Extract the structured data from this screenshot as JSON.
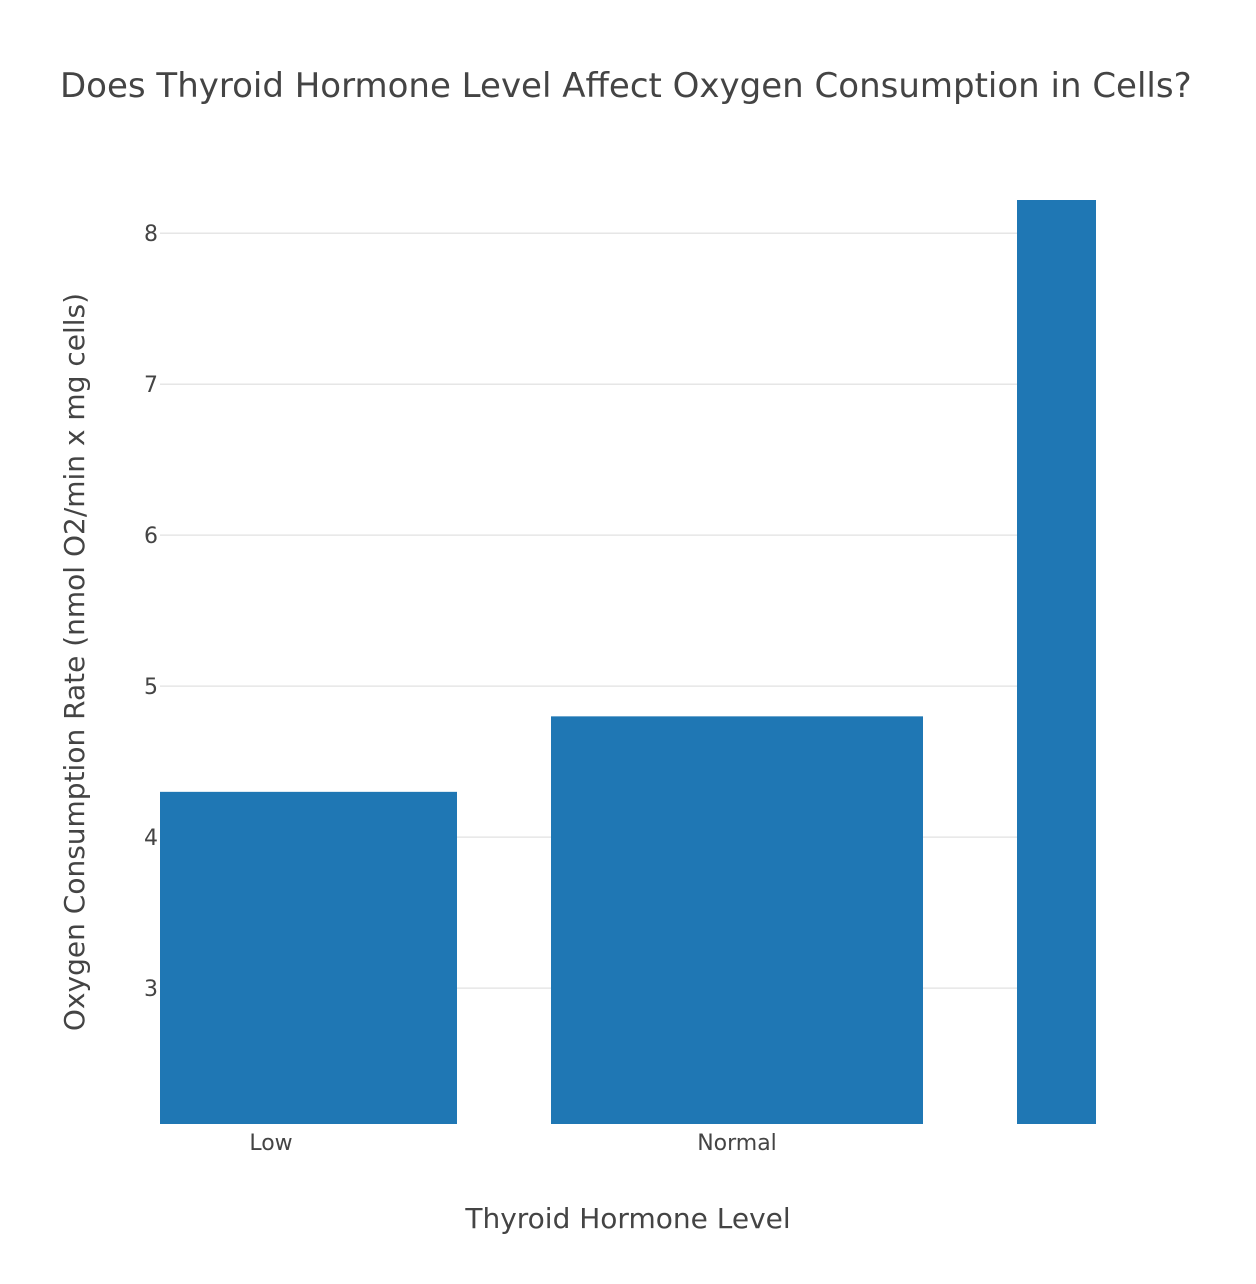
{
  "chart_data": {
    "type": "bar",
    "title": "Does Thyroid Hormone Level Affect Oxygen Consumption in Cells?",
    "xlabel": "Thyroid Hormone Level",
    "ylabel": "Oxygen Consumption Rate (nmol O2/min x mg cells)",
    "categories": [
      "Low",
      "Normal",
      ""
    ],
    "values": [
      4.3,
      4.8,
      8.22
    ],
    "yticks": [
      "3",
      "4",
      "5",
      "6",
      "7",
      "8"
    ],
    "ylim": [
      2.1,
      8.22
    ],
    "grid": true,
    "color": "#1f77b4"
  }
}
